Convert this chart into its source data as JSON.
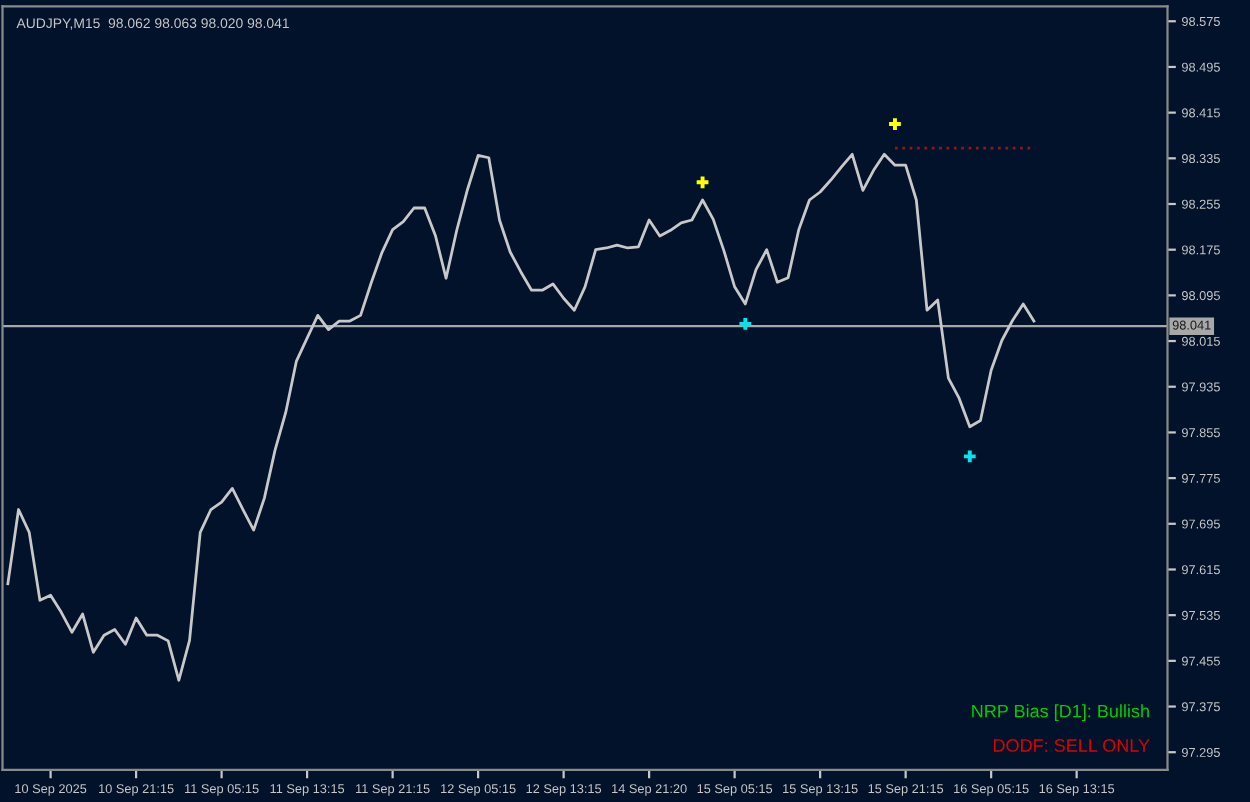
{
  "chart_data": {
    "type": "line",
    "title": "AUDJPY,M15  98.062 98.063 98.020 98.041",
    "categories": [
      null,
      null,
      null,
      null,
      "10 Sep 2025",
      null,
      null,
      null,
      null,
      null,
      null,
      null,
      "10 Sep 21:15",
      null,
      null,
      null,
      null,
      null,
      null,
      null,
      "11 Sep 05:15",
      null,
      null,
      null,
      null,
      null,
      null,
      null,
      "11 Sep 13:15",
      null,
      null,
      null,
      null,
      null,
      null,
      null,
      "11 Sep 21:15",
      null,
      null,
      null,
      null,
      null,
      null,
      null,
      "12 Sep 05:15",
      null,
      null,
      null,
      null,
      null,
      null,
      null,
      "12 Sep 13:15",
      null,
      null,
      null,
      null,
      null,
      null,
      null,
      "14 Sep 21:20",
      null,
      null,
      null,
      null,
      null,
      null,
      null,
      "15 Sep 05:15",
      null,
      null,
      null,
      null,
      null,
      null,
      null,
      "15 Sep 13:15",
      null,
      null,
      null,
      null,
      null,
      null,
      null,
      "15 Sep 21:15",
      null,
      null,
      null,
      null,
      null,
      null,
      null,
      "16 Sep 05:15",
      null,
      null,
      null,
      null,
      null,
      null,
      null,
      "16 Sep 13:15",
      null,
      null,
      null,
      null,
      null,
      null,
      null,
      null
    ],
    "ylim": [
      97.264,
      98.601
    ],
    "yticks": [
      97.295,
      97.375,
      97.455,
      97.535,
      97.615,
      97.695,
      97.775,
      97.855,
      97.935,
      98.015,
      98.095,
      98.175,
      98.255,
      98.335,
      98.415,
      98.495,
      98.575
    ],
    "grid": false,
    "series": [
      {
        "color": "#c8c8c8",
        "values": [
          97.59,
          97.72,
          97.68,
          97.561,
          97.57,
          97.54,
          97.505,
          97.537,
          97.47,
          97.5,
          97.51,
          97.484,
          97.53,
          97.5,
          97.5,
          97.49,
          97.421,
          97.491,
          97.68,
          97.72,
          97.733,
          97.757,
          97.72,
          97.684,
          97.74,
          97.824,
          97.89,
          97.98,
          98.02,
          98.06,
          98.035,
          98.05,
          98.05,
          98.06,
          98.117,
          98.17,
          98.21,
          98.224,
          98.248,
          98.248,
          98.2,
          98.125,
          98.209,
          98.28,
          98.34,
          98.336,
          98.227,
          98.171,
          98.136,
          98.104,
          98.104,
          98.115,
          98.09,
          98.069,
          98.11,
          98.175,
          98.178,
          98.183,
          98.178,
          98.18,
          98.227,
          98.199,
          98.209,
          98.222,
          98.227,
          98.262,
          98.228,
          98.173,
          98.11,
          98.08,
          98.14,
          98.175,
          98.118,
          98.126,
          98.21,
          98.262,
          98.276,
          98.297,
          98.32,
          98.342,
          98.279,
          98.314,
          98.342,
          98.323,
          98.323,
          98.262,
          98.069,
          98.087,
          97.95,
          97.915,
          97.865,
          97.876,
          97.964,
          98.016,
          98.051,
          98.08,
          98.05,
          null,
          null,
          null,
          null,
          null,
          null,
          null,
          null,
          null,
          null,
          null,
          null
        ]
      },
      {
        "type": "scatter",
        "color": "#ffff00",
        "marker": "cross",
        "values": [
          null,
          null,
          null,
          null,
          null,
          null,
          null,
          null,
          null,
          null,
          null,
          null,
          null,
          null,
          null,
          null,
          null,
          null,
          null,
          null,
          null,
          null,
          null,
          null,
          null,
          null,
          null,
          null,
          null,
          null,
          null,
          null,
          null,
          null,
          null,
          null,
          null,
          null,
          null,
          null,
          null,
          null,
          null,
          null,
          null,
          null,
          null,
          null,
          null,
          null,
          null,
          null,
          null,
          null,
          null,
          null,
          null,
          null,
          null,
          null,
          null,
          null,
          null,
          null,
          null,
          98.293,
          null,
          null,
          null,
          null,
          null,
          null,
          null,
          null,
          null,
          null,
          null,
          null,
          null,
          null,
          null,
          null,
          null,
          98.395,
          null,
          null,
          null,
          null,
          null,
          null,
          null,
          null,
          null,
          null,
          null,
          null,
          null,
          null,
          null,
          null,
          null,
          null,
          null,
          null,
          null,
          null,
          null,
          null,
          null
        ]
      },
      {
        "type": "scatter",
        "color": "#00e5ee",
        "marker": "cross",
        "values": [
          null,
          null,
          null,
          null,
          null,
          null,
          null,
          null,
          null,
          null,
          null,
          null,
          null,
          null,
          null,
          null,
          null,
          null,
          null,
          null,
          null,
          null,
          null,
          null,
          null,
          null,
          null,
          null,
          null,
          null,
          null,
          null,
          null,
          null,
          null,
          null,
          null,
          null,
          null,
          null,
          null,
          null,
          null,
          null,
          null,
          null,
          null,
          null,
          null,
          null,
          null,
          null,
          null,
          null,
          null,
          null,
          null,
          null,
          null,
          null,
          null,
          null,
          null,
          null,
          null,
          null,
          null,
          null,
          null,
          98.045,
          null,
          null,
          null,
          null,
          null,
          null,
          null,
          null,
          null,
          null,
          null,
          null,
          null,
          null,
          null,
          null,
          null,
          null,
          null,
          null,
          97.813,
          null,
          null,
          null,
          null,
          null,
          null,
          null,
          null,
          null,
          null,
          null,
          null,
          null,
          null,
          null,
          null,
          null,
          null
        ]
      },
      {
        "type": "line",
        "color": "#8b1a1a",
        "line_style": "dotted",
        "values": [
          null,
          null,
          null,
          null,
          null,
          null,
          null,
          null,
          null,
          null,
          null,
          null,
          null,
          null,
          null,
          null,
          null,
          null,
          null,
          null,
          null,
          null,
          null,
          null,
          null,
          null,
          null,
          null,
          null,
          null,
          null,
          null,
          null,
          null,
          null,
          null,
          null,
          null,
          null,
          null,
          null,
          null,
          null,
          null,
          null,
          null,
          null,
          null,
          null,
          null,
          null,
          null,
          null,
          null,
          null,
          null,
          null,
          null,
          null,
          null,
          null,
          null,
          null,
          null,
          null,
          null,
          null,
          null,
          null,
          null,
          null,
          null,
          null,
          null,
          null,
          null,
          null,
          null,
          null,
          null,
          null,
          null,
          null,
          98.353,
          98.353,
          98.353,
          98.353,
          98.353,
          98.353,
          98.353,
          98.353,
          98.353,
          98.353,
          98.353,
          98.353,
          98.353,
          98.353,
          null,
          null,
          null,
          null,
          null,
          null,
          null,
          null,
          null,
          null,
          null,
          null
        ]
      }
    ],
    "ref_lines": [
      {
        "axis": "y",
        "value": 98.041,
        "label": "98.041",
        "color": "#a8a8a8",
        "line_style": "solid"
      }
    ],
    "annotations": [
      "NRP Bias [D1]: Bullish",
      "DODF: SELL ONLY"
    ]
  }
}
